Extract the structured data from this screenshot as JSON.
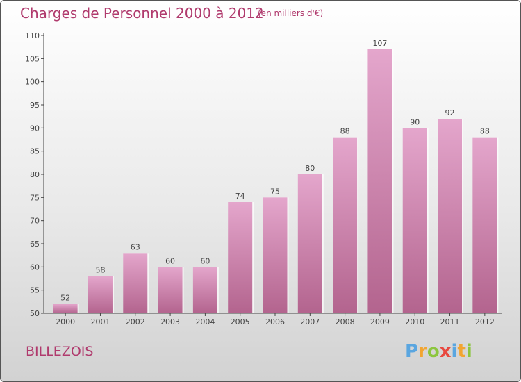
{
  "header": {
    "title": "Charges de Personnel 2000 à 2012",
    "subtitle": "(en milliers d'€)"
  },
  "footer": {
    "city": "BILLEZOIS",
    "logo": {
      "letters": [
        "P",
        "r",
        "o",
        "x",
        "i",
        "t",
        "i"
      ],
      "colors": [
        "#5aa6e0",
        "#f2a531",
        "#8cc63f",
        "#e8483f"
      ]
    }
  },
  "chart_data": {
    "type": "bar",
    "categories": [
      "2000",
      "2001",
      "2002",
      "2003",
      "2004",
      "2005",
      "2006",
      "2007",
      "2008",
      "2009",
      "2010",
      "2011",
      "2012"
    ],
    "values": [
      52,
      58,
      63,
      60,
      60,
      74,
      75,
      80,
      88,
      107,
      90,
      92,
      88
    ],
    "ylim": [
      50,
      110
    ],
    "yticks": [
      50,
      55,
      60,
      65,
      70,
      75,
      80,
      85,
      90,
      95,
      100,
      105,
      110
    ],
    "grid": false,
    "colors": {
      "bar_top": "#e4a6cc",
      "bar_bottom": "#b3648e",
      "text": "#b03a6d"
    }
  }
}
